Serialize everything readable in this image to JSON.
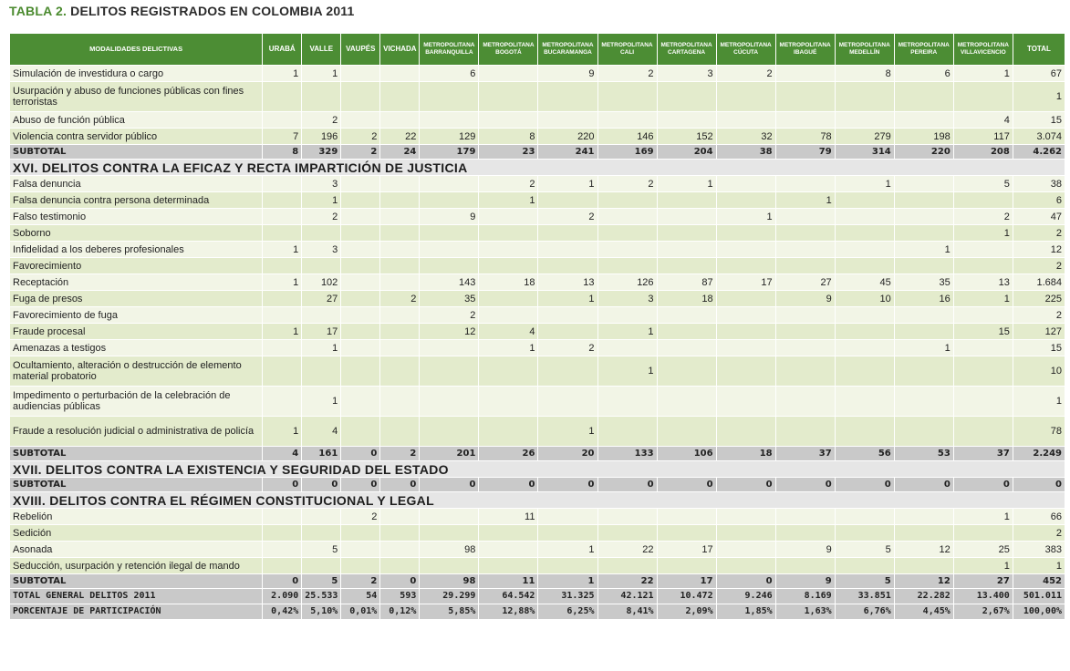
{
  "title": {
    "prefix": "TABLA 2.",
    "text": "DELITOS REGISTRADOS EN COLOMBIA 2011"
  },
  "headers": [
    "MODALIDADES DELICTIVAS",
    "URABÁ",
    "VALLE",
    "VAUPÉS",
    "VICHADA",
    "METROPOLITANA BARRANQUILLA",
    "METROPOLITANA BOGOTÁ",
    "METROPOLITANA BUCARAMANGA",
    "METROPOLITANA CALI",
    "METROPOLITANA CARTAGENA",
    "METROPOLITANA CÚCUTA",
    "METROPOLITANA IBAGUÉ",
    "METROPOLITANA MEDELLÍN",
    "METROPOLITANA PEREIRA",
    "METROPOLITANA VILLAVICENCIO",
    "TOTAL"
  ],
  "rows": [
    {
      "type": "row",
      "cells": [
        "Simulación de investidura o cargo",
        "1",
        "1",
        "",
        "",
        "6",
        "",
        "9",
        "2",
        "3",
        "2",
        "",
        "8",
        "6",
        "1",
        "67"
      ]
    },
    {
      "type": "row",
      "two": true,
      "cells": [
        "Usurpación y abuso de funciones públicas con fines terroristas",
        "",
        "",
        "",
        "",
        "",
        "",
        "",
        "",
        "",
        "",
        "",
        "",
        "",
        "",
        "1"
      ]
    },
    {
      "type": "row",
      "cells": [
        "Abuso de función pública",
        "",
        "2",
        "",
        "",
        "",
        "",
        "",
        "",
        "",
        "",
        "",
        "",
        "",
        "4",
        "15"
      ]
    },
    {
      "type": "row",
      "cells": [
        "Violencia contra servidor público",
        "7",
        "196",
        "2",
        "22",
        "129",
        "8",
        "220",
        "146",
        "152",
        "32",
        "78",
        "279",
        "198",
        "117",
        "3.074"
      ]
    },
    {
      "type": "sub",
      "cells": [
        "SUBTOTAL",
        "8",
        "329",
        "2",
        "24",
        "179",
        "23",
        "241",
        "169",
        "204",
        "38",
        "79",
        "314",
        "220",
        "208",
        "4.262"
      ]
    },
    {
      "type": "sec",
      "cells": [
        "XVI. DELITOS CONTRA LA EFICAZ Y RECTA IMPARTICIÓN DE JUSTICIA"
      ]
    },
    {
      "type": "row",
      "cells": [
        "Falsa denuncia",
        "",
        "3",
        "",
        "",
        "",
        "2",
        "1",
        "2",
        "1",
        "",
        "",
        "1",
        "",
        "5",
        "38"
      ]
    },
    {
      "type": "row",
      "cells": [
        "Falsa denuncia contra persona determinada",
        "",
        "1",
        "",
        "",
        "",
        "1",
        "",
        "",
        "",
        "",
        "1",
        "",
        "",
        "",
        "6"
      ]
    },
    {
      "type": "row",
      "cells": [
        "Falso testimonio",
        "",
        "2",
        "",
        "",
        "9",
        "",
        "2",
        "",
        "",
        "1",
        "",
        "",
        "",
        "2",
        "47"
      ]
    },
    {
      "type": "row",
      "cells": [
        "Soborno",
        "",
        "",
        "",
        "",
        "",
        "",
        "",
        "",
        "",
        "",
        "",
        "",
        "",
        "1",
        "2"
      ]
    },
    {
      "type": "row",
      "cells": [
        "Infidelidad a los deberes profesionales",
        "1",
        "3",
        "",
        "",
        "",
        "",
        "",
        "",
        "",
        "",
        "",
        "",
        "1",
        "",
        "12"
      ]
    },
    {
      "type": "row",
      "cells": [
        "Favorecimiento",
        "",
        "",
        "",
        "",
        "",
        "",
        "",
        "",
        "",
        "",
        "",
        "",
        "",
        "",
        "2"
      ]
    },
    {
      "type": "row",
      "cells": [
        "Receptación",
        "1",
        "102",
        "",
        "",
        "143",
        "18",
        "13",
        "126",
        "87",
        "17",
        "27",
        "45",
        "35",
        "13",
        "1.684"
      ]
    },
    {
      "type": "row",
      "cells": [
        "Fuga de presos",
        "",
        "27",
        "",
        "2",
        "35",
        "",
        "1",
        "3",
        "18",
        "",
        "9",
        "10",
        "16",
        "1",
        "225"
      ]
    },
    {
      "type": "row",
      "cells": [
        "Favorecimiento de fuga",
        "",
        "",
        "",
        "",
        "2",
        "",
        "",
        "",
        "",
        "",
        "",
        "",
        "",
        "",
        "2"
      ]
    },
    {
      "type": "row",
      "cells": [
        "Fraude procesal",
        "1",
        "17",
        "",
        "",
        "12",
        "4",
        "",
        "1",
        "",
        "",
        "",
        "",
        "",
        "15",
        "127"
      ]
    },
    {
      "type": "row",
      "cells": [
        "Amenazas a testigos",
        "",
        "1",
        "",
        "",
        "",
        "1",
        "2",
        "",
        "",
        "",
        "",
        "",
        "1",
        "",
        "15"
      ]
    },
    {
      "type": "row",
      "two": true,
      "cells": [
        "Ocultamiento, alteración o destrucción de elemento material probatorio",
        "",
        "",
        "",
        "",
        "",
        "",
        "",
        "1",
        "",
        "",
        "",
        "",
        "",
        "",
        "10"
      ]
    },
    {
      "type": "row",
      "two": true,
      "cells": [
        "Impedimento o perturbación de la celebración de audiencias públicas",
        "",
        "1",
        "",
        "",
        "",
        "",
        "",
        "",
        "",
        "",
        "",
        "",
        "",
        "",
        "1"
      ]
    },
    {
      "type": "row",
      "two": true,
      "cells": [
        "Fraude a resolución judicial o administrativa de policía",
        "1",
        "4",
        "",
        "",
        "",
        "",
        "1",
        "",
        "",
        "",
        "",
        "",
        "",
        "",
        "78"
      ]
    },
    {
      "type": "sub",
      "cells": [
        "SUBTOTAL",
        "4",
        "161",
        "0",
        "2",
        "201",
        "26",
        "20",
        "133",
        "106",
        "18",
        "37",
        "56",
        "53",
        "37",
        "2.249"
      ]
    },
    {
      "type": "sec",
      "cells": [
        "XVII. DELITOS CONTRA LA EXISTENCIA Y SEGURIDAD DEL ESTADO"
      ]
    },
    {
      "type": "sub",
      "cells": [
        "SUBTOTAL",
        "0",
        "0",
        "0",
        "0",
        "0",
        "0",
        "0",
        "0",
        "0",
        "0",
        "0",
        "0",
        "0",
        "0",
        "0"
      ]
    },
    {
      "type": "sec",
      "cells": [
        "XVIII. DELITOS CONTRA EL RÉGIMEN CONSTITUCIONAL Y LEGAL"
      ]
    },
    {
      "type": "row",
      "cells": [
        "Rebelión",
        "",
        "",
        "2",
        "",
        "",
        "11",
        "",
        "",
        "",
        "",
        "",
        "",
        "",
        "1",
        "66"
      ]
    },
    {
      "type": "row",
      "cells": [
        "Sedición",
        "",
        "",
        "",
        "",
        "",
        "",
        "",
        "",
        "",
        "",
        "",
        "",
        "",
        "",
        "2"
      ]
    },
    {
      "type": "row",
      "cells": [
        "Asonada",
        "",
        "5",
        "",
        "",
        "98",
        "",
        "1",
        "22",
        "17",
        "",
        "9",
        "5",
        "12",
        "25",
        "383"
      ]
    },
    {
      "type": "row",
      "cells": [
        "Seducción, usurpación y retención ilegal de mando",
        "",
        "",
        "",
        "",
        "",
        "",
        "",
        "",
        "",
        "",
        "",
        "",
        "",
        "1",
        "1"
      ]
    },
    {
      "type": "sub",
      "cells": [
        "SUBTOTAL",
        "0",
        "5",
        "2",
        "0",
        "98",
        "11",
        "1",
        "22",
        "17",
        "0",
        "9",
        "5",
        "12",
        "27",
        "452"
      ]
    },
    {
      "type": "foot",
      "cells": [
        "TOTAL GENERAL DELITOS 2011",
        "2.090",
        "25.533",
        "54",
        "593",
        "29.299",
        "64.542",
        "31.325",
        "42.121",
        "10.472",
        "9.246",
        "8.169",
        "33.851",
        "22.282",
        "13.400",
        "501.011"
      ]
    },
    {
      "type": "foot",
      "cells": [
        "PORCENTAJE DE PARTICIPACIÓN",
        "0,42%",
        "5,10%",
        "0,01%",
        "0,12%",
        "5,85%",
        "12,88%",
        "6,25%",
        "8,41%",
        "2,09%",
        "1,85%",
        "1,63%",
        "6,76%",
        "4,45%",
        "2,67%",
        "100,00%"
      ]
    }
  ]
}
